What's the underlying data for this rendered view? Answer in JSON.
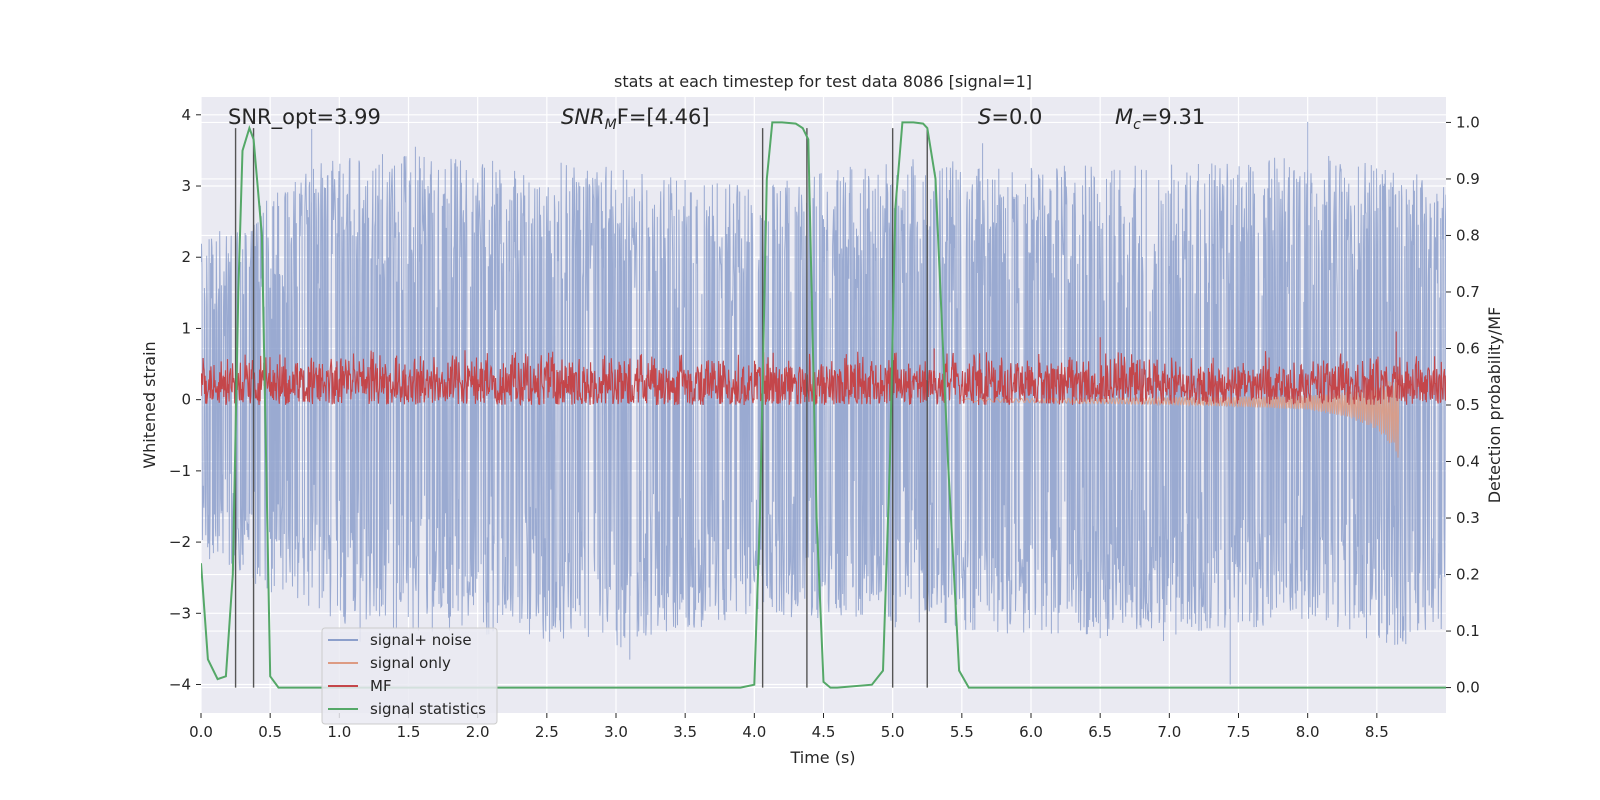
{
  "chart_data": {
    "type": "line",
    "title": "stats at each timestep for test data 8086 [signal=1]",
    "xlabel": "Time (s)",
    "ylabel": "Whitened strain",
    "y2label": "Detection probability/MF",
    "xlim": [
      0.0,
      9.0
    ],
    "ylim": [
      -4.4,
      4.25
    ],
    "y2lim": [
      -0.045,
      1.045
    ],
    "xticks": [
      0.0,
      0.5,
      1.0,
      1.5,
      2.0,
      2.5,
      3.0,
      3.5,
      4.0,
      4.5,
      5.0,
      5.5,
      6.0,
      6.5,
      7.0,
      7.5,
      8.0,
      8.5
    ],
    "xtick_labels": [
      "0.0",
      "0.5",
      "1.0",
      "1.5",
      "2.0",
      "2.5",
      "3.0",
      "3.5",
      "4.0",
      "4.5",
      "5.0",
      "5.5",
      "6.0",
      "6.5",
      "7.0",
      "7.5",
      "8.0",
      "8.5"
    ],
    "yticks": [
      -4,
      -3,
      -2,
      -1,
      0,
      1,
      2,
      3,
      4
    ],
    "ytick_labels": [
      "−4",
      "−3",
      "−2",
      "−1",
      "0",
      "1",
      "2",
      "3",
      "4"
    ],
    "y2ticks": [
      0.0,
      0.1,
      0.2,
      0.3,
      0.4,
      0.5,
      0.6,
      0.7,
      0.8,
      0.9,
      1.0
    ],
    "y2tick_labels": [
      "0.0",
      "0.1",
      "0.2",
      "0.3",
      "0.4",
      "0.5",
      "0.6",
      "0.7",
      "0.8",
      "0.9",
      "1.0"
    ],
    "grid": true,
    "legend_position": "lower-left",
    "annotations": {
      "snr_opt": "SNR_opt=3.99",
      "snr_mf_sym": "SNR",
      "snr_mf_sub": "M",
      "snr_mf_rest": "F=[4.46]",
      "s_sym": "S",
      "s_rest": "=0.0",
      "mc_sym": "M",
      "mc_sub": "c",
      "mc_rest": "=9.31"
    },
    "series": [
      {
        "name": "signal+ noise",
        "color": "#8c9fcb",
        "description": "whitened strain noise band",
        "band_envelope": {
          "x": [
            0.0,
            1.0,
            2.0,
            3.0,
            4.0,
            5.0,
            6.0,
            7.0,
            8.0,
            8.66,
            9.0
          ],
          "upper": [
            2.2,
            3.5,
            3.4,
            3.3,
            3.0,
            3.4,
            3.3,
            3.3,
            3.5,
            3.3,
            3.0
          ],
          "lower": [
            -2.3,
            -3.2,
            -3.3,
            -3.5,
            -3.0,
            -3.2,
            -3.3,
            -3.4,
            -3.1,
            -3.5,
            -3.2
          ]
        },
        "spikes": [
          {
            "x": 0.8,
            "y": 3.8
          },
          {
            "x": 1.15,
            "y": -3.4
          },
          {
            "x": 3.1,
            "y": -3.65
          },
          {
            "x": 5.65,
            "y": 3.6
          },
          {
            "x": 7.44,
            "y": -4.0
          },
          {
            "x": 8.0,
            "y": 3.9
          },
          {
            "x": 6.5,
            "y": -3.35
          },
          {
            "x": 1.55,
            "y": 3.55
          }
        ]
      },
      {
        "name": "signal only",
        "color": "#dd9b83",
        "description": "chirp growing until merger",
        "x": [
          5.5,
          6.5,
          7.0,
          7.5,
          8.0,
          8.3,
          8.5,
          8.6,
          8.66
        ],
        "amplitude": [
          0.02,
          0.04,
          0.05,
          0.07,
          0.1,
          0.18,
          0.3,
          0.45,
          0.6
        ]
      },
      {
        "name": "MF",
        "color": "#c4464a",
        "description": "matched filter output on detection-probability axis",
        "x": [
          0.0,
          9.0
        ],
        "center": 0.54,
        "range": [
          0.5,
          0.6
        ],
        "spikes": [
          {
            "x": 8.64,
            "y": 0.63
          },
          {
            "x": 6.5,
            "y": 0.62
          },
          {
            "x": 5.3,
            "y": 0.6
          }
        ]
      },
      {
        "name": "signal statistics",
        "color": "#55a868",
        "description": "detection probability",
        "x": [
          0.0,
          0.05,
          0.12,
          0.18,
          0.23,
          0.27,
          0.3,
          0.35,
          0.38,
          0.44,
          0.5,
          0.56,
          1.0,
          2.0,
          3.0,
          3.9,
          4.0,
          4.04,
          4.09,
          4.13,
          4.2,
          4.3,
          4.35,
          4.39,
          4.45,
          4.5,
          4.55,
          4.6,
          4.85,
          4.93,
          4.98,
          5.02,
          5.07,
          5.15,
          5.22,
          5.25,
          5.31,
          5.4,
          5.48,
          5.55,
          6.0,
          7.0,
          8.0,
          9.0
        ],
        "y": [
          0.22,
          0.05,
          0.015,
          0.02,
          0.2,
          0.7,
          0.95,
          0.99,
          0.97,
          0.8,
          0.02,
          0.0,
          0.0,
          0.0,
          0.0,
          0.0,
          0.005,
          0.3,
          0.9,
          1.0,
          1.0,
          0.998,
          0.99,
          0.97,
          0.3,
          0.01,
          0.0,
          0.0,
          0.005,
          0.03,
          0.4,
          0.85,
          1.0,
          1.0,
          0.998,
          0.99,
          0.9,
          0.4,
          0.03,
          0.0,
          0.0,
          0.0,
          0.0,
          0.0
        ]
      }
    ],
    "vertical_markers": [
      0.25,
      0.38,
      4.06,
      4.38,
      5.0,
      5.25
    ],
    "legend": [
      {
        "label": "signal+ noise",
        "color": "#8c9fcb"
      },
      {
        "label": "signal only",
        "color": "#dd9b83"
      },
      {
        "label": "MF",
        "color": "#c4464a"
      },
      {
        "label": "signal statistics",
        "color": "#55a868"
      }
    ]
  }
}
